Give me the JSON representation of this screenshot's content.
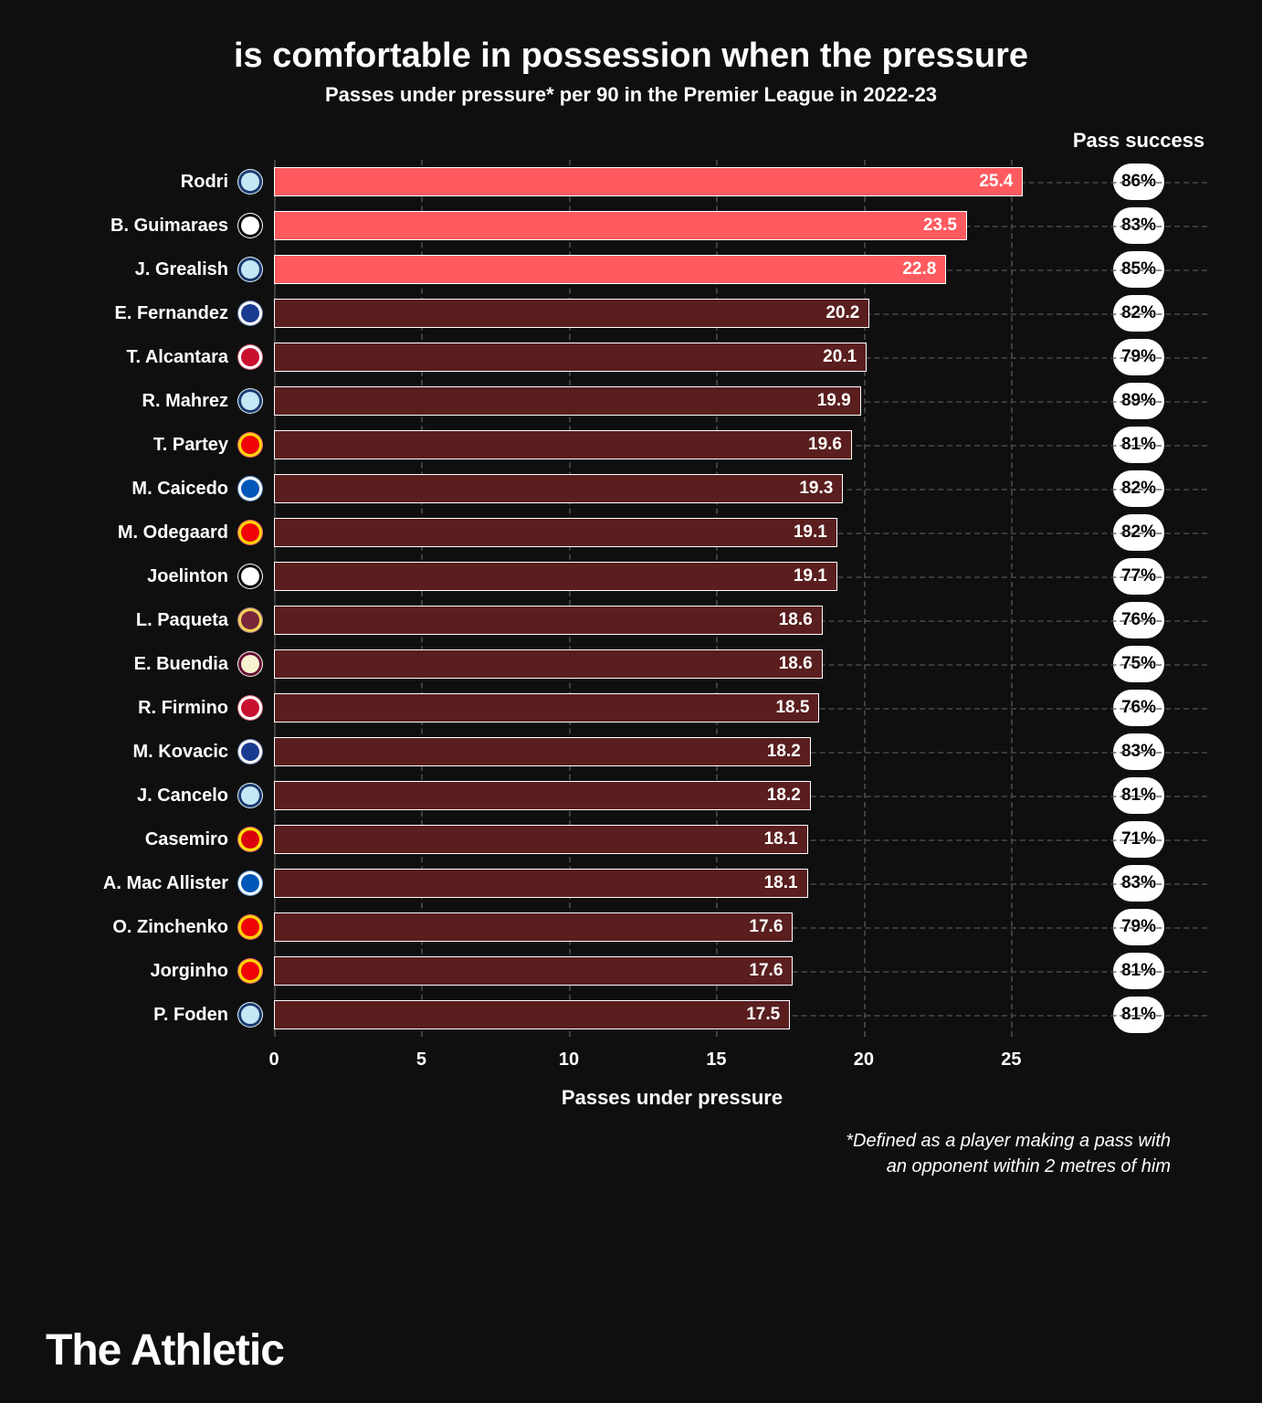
{
  "header": {
    "title": "is comfortable in possession when the pressure",
    "subtitle": "Passes under pressure* per 90 in the Premier League in 2022-23",
    "pass_success_label": "Pass success"
  },
  "chart": {
    "type": "bar",
    "xmin": 0,
    "xmax": 27,
    "xticks": [
      0,
      5,
      10,
      15,
      20,
      25
    ],
    "xlabel": "Passes under pressure",
    "bar_border_color": "#ffffff",
    "highlight_color": "#ff5a5f",
    "normal_color": "#5a1e1e",
    "grid_color": "#555555",
    "background": "#0f0f0f",
    "rows": [
      {
        "name": "Rodri",
        "value": 25.4,
        "pass_success": "86%",
        "highlighted": true,
        "badge_bg": "#c5e8f7",
        "badge_ring": "#1c3a6e"
      },
      {
        "name": "B. Guimaraes",
        "value": 23.5,
        "pass_success": "83%",
        "highlighted": true,
        "badge_bg": "#ffffff",
        "badge_ring": "#000000"
      },
      {
        "name": "J. Grealish",
        "value": 22.8,
        "pass_success": "85%",
        "highlighted": true,
        "badge_bg": "#c5e8f7",
        "badge_ring": "#1c3a6e"
      },
      {
        "name": "E. Fernandez",
        "value": 20.2,
        "pass_success": "82%",
        "highlighted": false,
        "badge_bg": "#1a3a8f",
        "badge_ring": "#ffffff"
      },
      {
        "name": "T. Alcantara",
        "value": 20.1,
        "pass_success": "79%",
        "highlighted": false,
        "badge_bg": "#c8102e",
        "badge_ring": "#ffffff"
      },
      {
        "name": "R. Mahrez",
        "value": 19.9,
        "pass_success": "89%",
        "highlighted": false,
        "badge_bg": "#c5e8f7",
        "badge_ring": "#1c3a6e"
      },
      {
        "name": "T. Partey",
        "value": 19.6,
        "pass_success": "81%",
        "highlighted": false,
        "badge_bg": "#ef0107",
        "badge_ring": "#ffd700"
      },
      {
        "name": "M. Caicedo",
        "value": 19.3,
        "pass_success": "82%",
        "highlighted": false,
        "badge_bg": "#0057b8",
        "badge_ring": "#ffffff"
      },
      {
        "name": "M. Odegaard",
        "value": 19.1,
        "pass_success": "82%",
        "highlighted": false,
        "badge_bg": "#ef0107",
        "badge_ring": "#ffd700"
      },
      {
        "name": "Joelinton",
        "value": 19.1,
        "pass_success": "77%",
        "highlighted": false,
        "badge_bg": "#ffffff",
        "badge_ring": "#000000"
      },
      {
        "name": "L. Paqueta",
        "value": 18.6,
        "pass_success": "76%",
        "highlighted": false,
        "badge_bg": "#7a263a",
        "badge_ring": "#f3d459"
      },
      {
        "name": "E. Buendia",
        "value": 18.6,
        "pass_success": "75%",
        "highlighted": false,
        "badge_bg": "#f7f2d0",
        "badge_ring": "#670e36"
      },
      {
        "name": "R. Firmino",
        "value": 18.5,
        "pass_success": "76%",
        "highlighted": false,
        "badge_bg": "#c8102e",
        "badge_ring": "#ffffff"
      },
      {
        "name": "M. Kovacic",
        "value": 18.2,
        "pass_success": "83%",
        "highlighted": false,
        "badge_bg": "#1a3a8f",
        "badge_ring": "#ffffff"
      },
      {
        "name": "J. Cancelo",
        "value": 18.2,
        "pass_success": "81%",
        "highlighted": false,
        "badge_bg": "#c5e8f7",
        "badge_ring": "#1c3a6e"
      },
      {
        "name": "Casemiro",
        "value": 18.1,
        "pass_success": "71%",
        "highlighted": false,
        "badge_bg": "#da020e",
        "badge_ring": "#ffe500"
      },
      {
        "name": "A. Mac Allister",
        "value": 18.1,
        "pass_success": "83%",
        "highlighted": false,
        "badge_bg": "#0057b8",
        "badge_ring": "#ffffff"
      },
      {
        "name": "O. Zinchenko",
        "value": 17.6,
        "pass_success": "79%",
        "highlighted": false,
        "badge_bg": "#ef0107",
        "badge_ring": "#ffd700"
      },
      {
        "name": "Jorginho",
        "value": 17.6,
        "pass_success": "81%",
        "highlighted": false,
        "badge_bg": "#ef0107",
        "badge_ring": "#ffd700"
      },
      {
        "name": "P. Foden",
        "value": 17.5,
        "pass_success": "81%",
        "highlighted": false,
        "badge_bg": "#c5e8f7",
        "badge_ring": "#1c3a6e"
      }
    ]
  },
  "footnote": {
    "line1": "*Defined as a player making a pass with",
    "line2": "an opponent within 2 metres of him"
  },
  "brand": "The Athletic"
}
